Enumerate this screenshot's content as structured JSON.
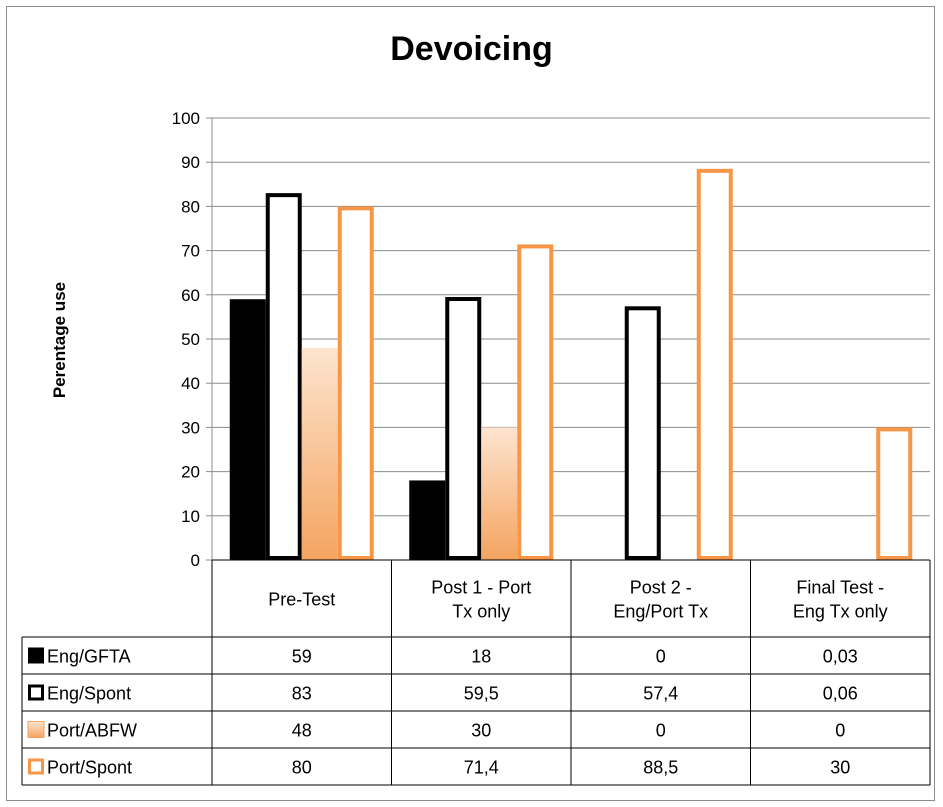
{
  "chart_data": {
    "type": "bar",
    "title": "Devoicing",
    "xlabel": "",
    "ylabel": "Perentage use",
    "ylim": [
      0,
      100
    ],
    "yticks": [
      "0",
      "10",
      "20",
      "30",
      "40",
      "50",
      "60",
      "70",
      "80",
      "90",
      "100"
    ],
    "grid": true,
    "legend_placement": "data-table-left",
    "categories": [
      [
        "Pre-Test"
      ],
      [
        "Post 1 - Port",
        "Tx only"
      ],
      [
        "Post 2 -",
        "Eng/Port Tx"
      ],
      [
        "Final Test -",
        "Eng Tx only"
      ]
    ],
    "series": [
      {
        "name": "Eng/GFTA",
        "values": [
          59,
          18,
          0,
          0.03
        ],
        "labels": [
          "59",
          "18",
          "0",
          "0,03"
        ],
        "style": "solid",
        "color": "#000000"
      },
      {
        "name": "Eng/Spont",
        "values": [
          83,
          59.5,
          57.4,
          0.06
        ],
        "labels": [
          "83",
          "59,5",
          "57,4",
          "0,06"
        ],
        "style": "outline",
        "color": "#000000"
      },
      {
        "name": "Port/ABFW",
        "values": [
          48,
          30,
          0,
          0
        ],
        "labels": [
          "48",
          "30",
          "0",
          "0"
        ],
        "style": "gradient",
        "color": "#f4a460"
      },
      {
        "name": "Port/Spont",
        "values": [
          80,
          71.4,
          88.5,
          30
        ],
        "labels": [
          "80",
          "71,4",
          "88,5",
          "30"
        ],
        "style": "outline",
        "color": "#f79646"
      }
    ]
  }
}
